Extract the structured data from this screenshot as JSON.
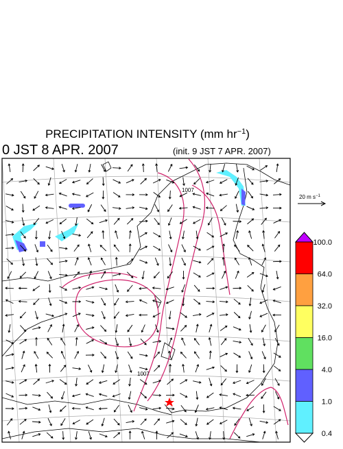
{
  "header": {
    "title_main": "PRECIPITATION INTENSITY (mm hr",
    "title_exp": "−1",
    "title_end": ")",
    "valid_time": "0 JST 8 APR. 2007",
    "init_time": "(init. 9 JST 7 APR. 2007)"
  },
  "vector_scale": {
    "label_main": "20 m s",
    "label_exp": "−1"
  },
  "contour_labels": [
    "1007",
    "1007"
  ],
  "legend": {
    "levels": [
      "100.0",
      "64.0",
      "32.0",
      "16.0",
      "4.0",
      "1.0",
      "0.4"
    ],
    "colors": [
      "#ff0000",
      "#ffa040",
      "#ffff60",
      "#60e060",
      "#6060ff",
      "#60f0ff"
    ],
    "over_color": "#c000ff",
    "under_color": "#ffffff"
  }
}
